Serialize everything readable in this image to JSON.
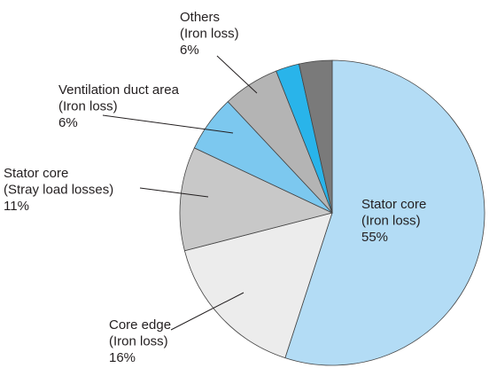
{
  "chart_data": {
    "type": "pie",
    "categories": [
      [
        "Stator core",
        "(Iron loss)"
      ],
      [
        "Core edge",
        "(Iron loss)"
      ],
      [
        "Stator core",
        "(Stray load losses)"
      ],
      [
        "Ventilation duct area",
        "(Iron loss)"
      ],
      [
        "Others",
        "(Iron loss)"
      ],
      null,
      null
    ],
    "values": [
      55,
      16,
      11,
      6,
      6,
      2.5,
      3.5
    ],
    "value_labels": [
      "55%",
      "16%",
      "11%",
      "6%",
      "6%",
      null,
      null
    ],
    "colors": [
      "#b3dcf5",
      "#ececec",
      "#c8c8c8",
      "#7cc8ef",
      "#b4b4b4",
      "#29b4ea",
      "#7a7a7a"
    ]
  }
}
